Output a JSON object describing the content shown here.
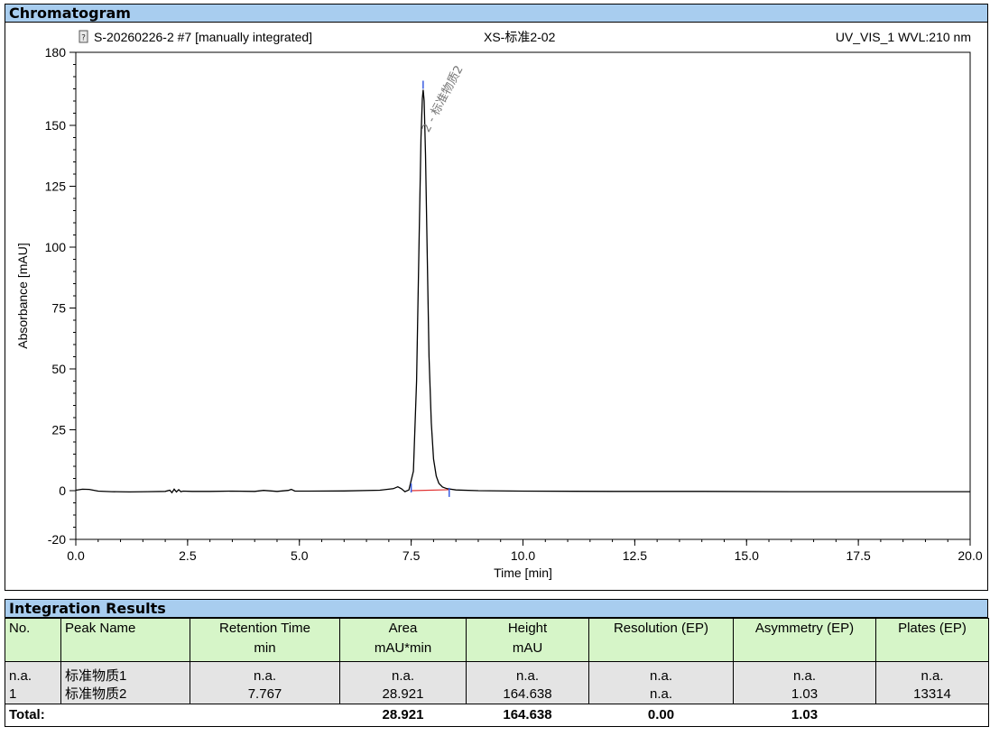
{
  "sections": {
    "chromatogram": "Chromatogram",
    "integration": "Integration Results"
  },
  "chart_data": {
    "type": "line",
    "header": {
      "sample": "S-20260226-2 #7 [manually integrated]",
      "injection": "XS-标准2-02",
      "channel": "UV_VIS_1 WVL:210 nm"
    },
    "xlabel": "Time [min]",
    "ylabel": "Absorbance [mAU]",
    "xlim": [
      0,
      20
    ],
    "ylim": [
      -20,
      180
    ],
    "x_ticks": [
      "0.0",
      "2.5",
      "5.0",
      "7.5",
      "10.0",
      "12.5",
      "15.0",
      "17.5",
      "20.0"
    ],
    "y_ticks": [
      "-20",
      "0",
      "25",
      "50",
      "75",
      "100",
      "125",
      "150",
      "180"
    ],
    "series": [
      {
        "x": [
          0.0,
          0.15,
          0.3,
          0.5,
          0.8,
          1.2,
          1.6,
          2.0,
          2.1,
          2.15,
          2.2,
          2.25,
          2.3,
          2.35,
          2.4,
          2.6,
          3.0,
          3.5,
          4.0,
          4.2,
          4.5,
          4.75,
          4.82,
          4.9,
          5.2,
          6.0,
          6.8,
          7.1,
          7.2,
          7.28,
          7.36,
          7.45,
          7.55,
          7.62,
          7.68,
          7.72,
          7.75,
          7.767,
          7.79,
          7.82,
          7.86,
          7.9,
          7.95,
          8.0,
          8.06,
          8.12,
          8.2,
          8.3,
          8.5,
          9.0,
          10.0,
          12.0,
          14.0,
          16.0,
          18.0,
          20.0
        ],
        "y": [
          0.2,
          0.6,
          0.5,
          -0.2,
          -0.4,
          -0.5,
          -0.4,
          -0.3,
          0.2,
          -0.8,
          0.6,
          -0.5,
          0.4,
          -0.4,
          -0.2,
          -0.3,
          -0.3,
          -0.2,
          -0.3,
          0.1,
          -0.3,
          0.1,
          0.5,
          -0.2,
          -0.2,
          -0.1,
          0.2,
          0.8,
          1.6,
          0.8,
          -0.4,
          0.3,
          8,
          45,
          105,
          145,
          161,
          164.6,
          160,
          138,
          95,
          55,
          28,
          13,
          6,
          3,
          1.5,
          0.8,
          0.3,
          0.0,
          -0.2,
          -0.3,
          -0.3,
          -0.4,
          -0.4,
          -0.4
        ]
      }
    ],
    "peaks": [
      {
        "label": "2 - 标准物质2",
        "retention_time": 7.767,
        "height": 164.638
      }
    ],
    "baseline": {
      "start": [
        7.5,
        0.0
      ],
      "end": [
        8.35,
        0.4
      ]
    },
    "integration_marks": [
      7.5,
      7.767,
      8.35
    ],
    "colors": {
      "trace": "#000000",
      "baseline": "#e03030",
      "marks": "#3a5ce0",
      "peak_label": "#777777"
    }
  },
  "table": {
    "headers": [
      [
        "No.",
        ""
      ],
      [
        "Peak Name",
        ""
      ],
      [
        "Retention Time",
        "min"
      ],
      [
        "Area",
        "mAU*min"
      ],
      [
        "Height",
        "mAU"
      ],
      [
        "Resolution (EP)",
        ""
      ],
      [
        "Asymmetry (EP)",
        ""
      ],
      [
        "Plates (EP)",
        ""
      ]
    ],
    "rows": [
      [
        "n.a.",
        "标准物质1",
        "n.a.",
        "n.a.",
        "n.a.",
        "n.a.",
        "n.a.",
        "n.a."
      ],
      [
        "1",
        "标准物质2",
        "7.767",
        "28.921",
        "164.638",
        "n.a.",
        "1.03",
        "13314"
      ]
    ],
    "total": {
      "label": "Total:",
      "area": "28.921",
      "height": "164.638",
      "resolution": "0.00",
      "asymmetry": "1.03"
    }
  }
}
